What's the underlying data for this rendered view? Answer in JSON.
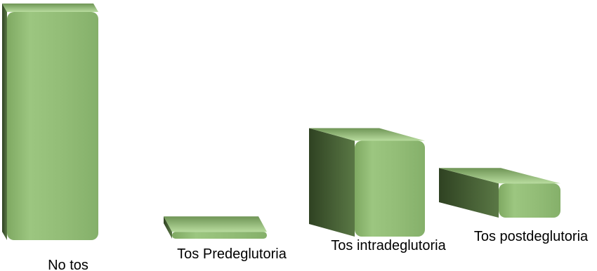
{
  "chart_data": {
    "type": "bar",
    "style": "3d-box",
    "categories": [
      "No tos",
      "Tos Predeglutoria",
      "Tos intradeglutoria",
      "Tos postdeglutoria"
    ],
    "values": [
      100,
      3,
      42,
      15
    ],
    "ylim": [
      0,
      100
    ],
    "title": "",
    "xlabel": "",
    "ylabel": "",
    "grid": false,
    "legend": "none",
    "colors": {
      "front": "#8fba72",
      "front_highlight": "#a6cd89",
      "side": "#4f6a3c",
      "side_dark": "#3a5029",
      "top": "#b1d497"
    }
  }
}
